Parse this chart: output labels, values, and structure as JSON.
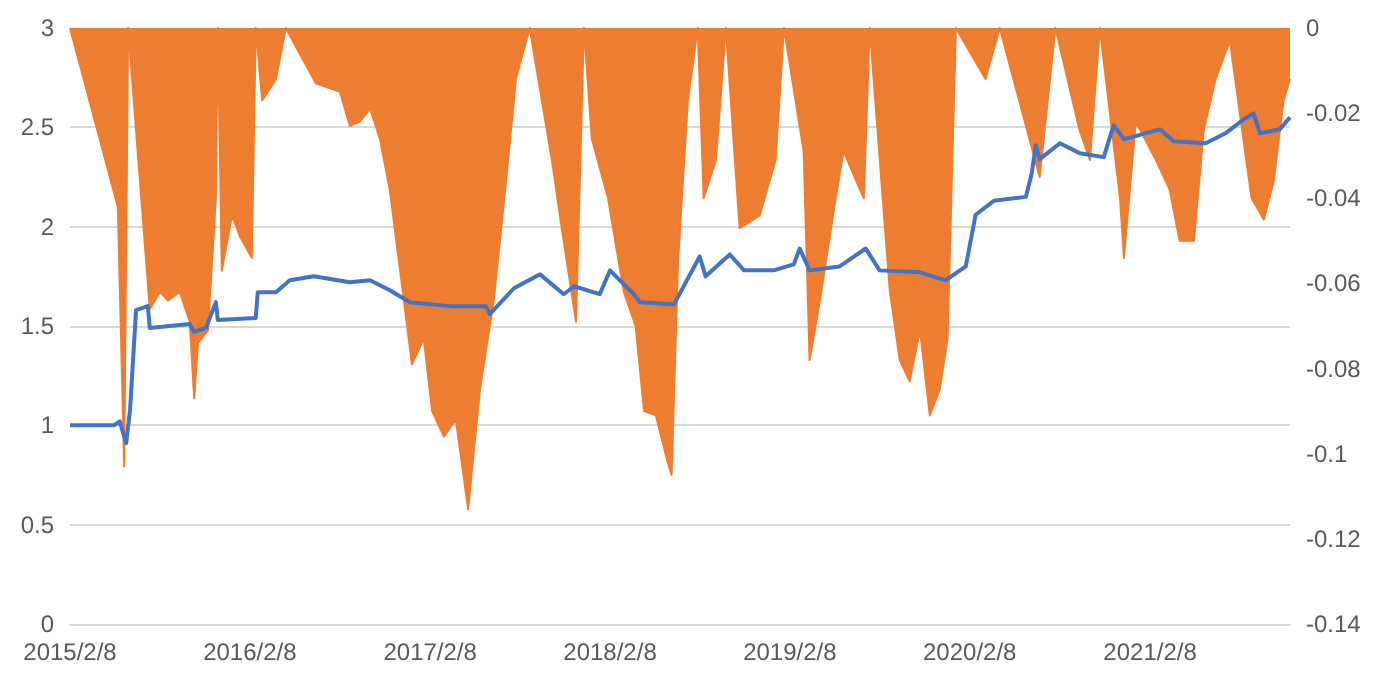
{
  "chart_data": {
    "type": "line",
    "xlim": [
      "2015-02-08",
      "2021-11-19"
    ],
    "xticks": [
      {
        "value": "2015-02-08",
        "label": "2015/2/8"
      },
      {
        "value": "2016-02-08",
        "label": "2016/2/8"
      },
      {
        "value": "2017-02-08",
        "label": "2017/2/8"
      },
      {
        "value": "2018-02-08",
        "label": "2018/2/8"
      },
      {
        "value": "2019-02-08",
        "label": "2019/2/8"
      },
      {
        "value": "2020-02-08",
        "label": "2020/2/8"
      },
      {
        "value": "2021-02-08",
        "label": "2021/2/8"
      }
    ],
    "ylim": [
      0,
      3
    ],
    "yticks": [
      0,
      0.5,
      1,
      1.5,
      2,
      2.5,
      3
    ],
    "y2lim": [
      -0.14,
      0
    ],
    "y2ticks": [
      -0.14,
      -0.12,
      -0.1,
      -0.08,
      -0.06,
      -0.04,
      -0.02,
      0
    ],
    "grid": "y",
    "marker": "none",
    "line_style": "solid",
    "series": [
      {
        "type": "area",
        "axis": "y2",
        "color": "#ed7d31",
        "x": [
          "2015-02-08",
          "2015-05-16",
          "2015-05-29",
          "2015-06-06",
          "2015-07-20",
          "2015-08-10",
          "2015-08-26",
          "2015-09-19",
          "2015-10-09",
          "2015-10-18",
          "2015-10-26",
          "2015-11-15",
          "2015-12-01",
          "2015-12-05",
          "2015-12-13",
          "2016-01-03",
          "2016-01-19",
          "2016-02-12",
          "2016-02-20",
          "2016-03-04",
          "2016-04-01",
          "2016-04-21",
          "2016-06-21",
          "2016-08-09",
          "2016-08-29",
          "2016-09-18",
          "2016-10-09",
          "2016-10-29",
          "2016-11-18",
          "2016-12-09",
          "2017-01-02",
          "2017-01-26",
          "2017-02-12",
          "2017-03-08",
          "2017-04-01",
          "2017-04-26",
          "2017-05-20",
          "2017-06-17",
          "2017-07-12",
          "2017-08-01",
          "2017-08-29",
          "2017-10-13",
          "2017-11-02",
          "2017-12-01",
          "2017-12-17",
          "2018-01-02",
          "2018-02-04",
          "2018-03-08",
          "2018-04-01",
          "2018-04-18",
          "2018-05-12",
          "2018-06-05",
          "2018-06-13",
          "2018-06-26",
          "2018-07-16",
          "2018-08-05",
          "2018-08-17",
          "2018-09-11",
          "2018-10-01",
          "2018-10-29",
          "2018-12-09",
          "2019-01-10",
          "2019-01-27",
          "2019-03-08",
          "2019-03-20",
          "2019-04-10",
          "2019-05-12",
          "2019-05-28",
          "2019-07-08",
          "2019-07-20",
          "2019-08-30",
          "2019-09-19",
          "2019-10-09",
          "2019-10-30",
          "2019-11-19",
          "2019-12-09",
          "2019-12-25",
          "2020-01-11",
          "2020-03-11",
          "2020-04-09",
          "2020-06-29",
          "2020-07-31",
          "2020-09-18",
          "2020-10-09",
          "2020-10-29",
          "2020-12-09",
          "2020-12-17",
          "2021-01-10",
          "2021-02-20",
          "2021-03-20",
          "2021-04-09",
          "2021-05-08",
          "2021-05-28",
          "2021-06-21",
          "2021-07-20",
          "2021-09-02",
          "2021-09-27",
          "2021-10-17",
          "2021-11-06",
          "2021-11-19"
        ],
        "values": [
          0,
          -0.042,
          -0.103,
          0,
          -0.066,
          -0.062,
          -0.064,
          -0.062,
          -0.069,
          -0.087,
          -0.074,
          -0.071,
          -0.04,
          0,
          -0.057,
          -0.044,
          -0.049,
          -0.054,
          0,
          -0.017,
          -0.012,
          0,
          -0.013,
          -0.015,
          -0.023,
          -0.022,
          -0.019,
          -0.026,
          -0.038,
          -0.057,
          -0.079,
          -0.073,
          -0.09,
          -0.096,
          -0.092,
          -0.113,
          -0.085,
          -0.064,
          -0.036,
          -0.012,
          0,
          -0.031,
          -0.047,
          -0.069,
          0,
          -0.026,
          -0.04,
          -0.062,
          -0.07,
          -0.09,
          -0.091,
          -0.102,
          -0.105,
          -0.055,
          -0.017,
          0,
          -0.04,
          -0.031,
          0,
          -0.047,
          -0.044,
          -0.031,
          0,
          -0.029,
          -0.078,
          -0.064,
          -0.04,
          -0.029,
          -0.04,
          0,
          -0.062,
          -0.078,
          -0.083,
          -0.071,
          -0.091,
          -0.085,
          -0.073,
          0,
          -0.012,
          0,
          -0.035,
          0,
          -0.024,
          -0.031,
          0,
          -0.04,
          -0.054,
          -0.022,
          -0.031,
          -0.038,
          -0.05,
          -0.05,
          -0.024,
          -0.012,
          -0.003,
          -0.04,
          -0.045,
          -0.036,
          -0.017,
          -0.012
        ]
      },
      {
        "axis": "y",
        "color": "#4472c4",
        "x": [
          "2015-02-08",
          "2015-05-08",
          "2015-05-20",
          "2015-06-02",
          "2015-06-10",
          "2015-06-22",
          "2015-07-16",
          "2015-07-20",
          "2015-10-09",
          "2015-10-18",
          "2015-11-11",
          "2015-12-01",
          "2015-12-05",
          "2016-02-20",
          "2016-02-24",
          "2016-04-01",
          "2016-04-29",
          "2016-06-17",
          "2016-08-29",
          "2016-10-09",
          "2016-11-18",
          "2016-12-29",
          "2017-03-20",
          "2017-06-01",
          "2017-06-09",
          "2017-07-28",
          "2017-09-19",
          "2017-11-06",
          "2017-11-27",
          "2018-01-18",
          "2018-02-08",
          "2018-03-28",
          "2018-04-10",
          "2018-06-18",
          "2018-08-09",
          "2018-08-21",
          "2018-10-09",
          "2018-11-07",
          "2019-01-06",
          "2019-02-16",
          "2019-02-28",
          "2019-03-20",
          "2019-05-20",
          "2019-07-12",
          "2019-08-09",
          "2019-10-30",
          "2019-12-21",
          "2020-01-31",
          "2020-02-20",
          "2020-03-28",
          "2020-06-01",
          "2020-06-13",
          "2020-06-21",
          "2020-06-29",
          "2020-08-09",
          "2020-09-18",
          "2020-11-06",
          "2020-11-26",
          "2020-12-17",
          "2021-02-28",
          "2021-03-28",
          "2021-06-01",
          "2021-07-11",
          "2021-08-17",
          "2021-09-06",
          "2021-09-19",
          "2021-10-29",
          "2021-11-19"
        ],
        "values": [
          1,
          1,
          1.02,
          0.91,
          1.08,
          1.58,
          1.6,
          1.49,
          1.51,
          1.47,
          1.49,
          1.62,
          1.53,
          1.54,
          1.67,
          1.67,
          1.73,
          1.75,
          1.72,
          1.73,
          1.68,
          1.62,
          1.6,
          1.6,
          1.56,
          1.69,
          1.76,
          1.66,
          1.7,
          1.66,
          1.78,
          1.66,
          1.62,
          1.61,
          1.85,
          1.75,
          1.86,
          1.78,
          1.78,
          1.81,
          1.89,
          1.78,
          1.8,
          1.89,
          1.78,
          1.77,
          1.73,
          1.8,
          2.06,
          2.13,
          2.15,
          2.27,
          2.41,
          2.34,
          2.42,
          2.37,
          2.35,
          2.51,
          2.44,
          2.49,
          2.43,
          2.42,
          2.47,
          2.54,
          2.57,
          2.47,
          2.49,
          2.55
        ]
      }
    ]
  }
}
